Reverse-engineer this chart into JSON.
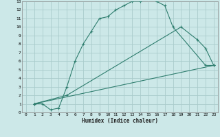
{
  "title": "",
  "xlabel": "Humidex (Indice chaleur)",
  "bg_color": "#cce8e8",
  "grid_color": "#aacccc",
  "line_color": "#2e7d6e",
  "xlim": [
    -0.5,
    23.5
  ],
  "ylim": [
    0,
    13
  ],
  "line1_x": [
    1,
    2,
    3,
    4,
    5,
    6,
    7,
    8,
    9,
    10,
    11,
    12,
    13,
    14,
    15,
    16,
    17,
    18,
    22,
    23
  ],
  "line1_y": [
    1.0,
    1.0,
    0.3,
    0.5,
    3.0,
    6.0,
    8.0,
    9.5,
    11.0,
    11.2,
    12.0,
    12.5,
    13.0,
    13.0,
    13.3,
    13.0,
    12.5,
    10.0,
    5.5,
    5.5
  ],
  "line2_x": [
    1,
    5,
    19,
    21,
    22,
    23
  ],
  "line2_y": [
    1.0,
    2.0,
    10.0,
    8.5,
    7.5,
    5.5
  ],
  "line3_x": [
    1,
    23
  ],
  "line3_y": [
    1.0,
    5.5
  ],
  "xtick_labels": [
    "0",
    "1",
    "2",
    "3",
    "4",
    "5",
    "6",
    "7",
    "8",
    "9",
    "10",
    "11",
    "12",
    "13",
    "14",
    "15",
    "16",
    "17",
    "18",
    "19",
    "20",
    "21",
    "22",
    "23"
  ],
  "ytick_labels": [
    "0",
    "1",
    "2",
    "3",
    "4",
    "5",
    "6",
    "7",
    "8",
    "9",
    "10",
    "11",
    "12",
    "13"
  ]
}
